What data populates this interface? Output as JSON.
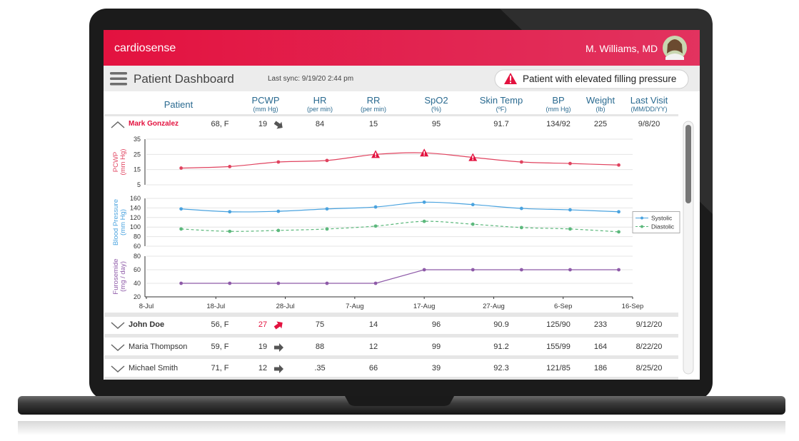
{
  "header": {
    "brand": "cardiosense",
    "user": "M. Williams, MD"
  },
  "toolbar": {
    "title": "Patient Dashboard",
    "sync": "Last sync: 9/19/20 2:44 pm",
    "alert": "Patient with elevated filling pressure"
  },
  "table": {
    "columns": [
      {
        "name": "Patient"
      },
      {
        "name": "PCWP",
        "unit": "(mm Hg)"
      },
      {
        "name": "HR",
        "unit": "(per min)"
      },
      {
        "name": "RR",
        "unit": "(per min)"
      },
      {
        "name": "SpO2",
        "unit": "(%)"
      },
      {
        "name": "Skin Temp",
        "unit": "(ºF)"
      },
      {
        "name": "BP",
        "unit": "(mm Hg)"
      },
      {
        "name": "Weight",
        "unit": "(lb)"
      },
      {
        "name": "Last Visit",
        "unit": "(MM/DD/YY)"
      }
    ],
    "rows": [
      {
        "name": "Mark Gonzalez",
        "age": "68, F",
        "cells": [
          "19",
          "84",
          "15",
          "95",
          "91.7",
          "134/92",
          "225",
          "9/8/20"
        ],
        "expanded": true,
        "pcwp_trend": "down",
        "pcwp_alert": false
      },
      {
        "name": "John Doe",
        "age": "56, F",
        "cells": [
          "27",
          "75",
          "14",
          "96",
          "90.9",
          "125/90",
          "233",
          "9/12/20"
        ],
        "expanded": false,
        "pcwp_trend": "up",
        "pcwp_alert": true
      },
      {
        "name": "Maria Thompson",
        "age": "59, F",
        "cells": [
          "19",
          "88",
          "12",
          "99",
          "91.2",
          "155/99",
          "164",
          "8/22/20"
        ],
        "expanded": false,
        "pcwp_trend": "flat",
        "pcwp_alert": false
      },
      {
        "name": "Michael Smith",
        "age": "71, F",
        "cells": [
          "12",
          ".35",
          "66",
          "39",
          "92.3",
          "121/85",
          "186",
          "8/25/20"
        ],
        "expanded": false,
        "pcwp_trend": "flat",
        "pcwp_alert": false
      }
    ]
  },
  "chart_data": [
    {
      "type": "line",
      "y_label": [
        "PCWP",
        "(mm Hg)"
      ],
      "label_color": "#e0435f",
      "smooth": true,
      "x": [
        "13-Jul",
        "20-Jul",
        "27-Jul",
        "3-Aug",
        "10-Aug",
        "17-Aug",
        "24-Aug",
        "31-Aug",
        "7-Sep",
        "14-Sep"
      ],
      "xlim": [
        "8-Jul",
        "16-Sep"
      ],
      "ylim": [
        5,
        35
      ],
      "yticks": [
        5,
        15,
        25,
        35
      ],
      "grid": true,
      "series": [
        {
          "name": "PCWP",
          "color": "#e0435f",
          "dash": false,
          "values": [
            16,
            17,
            20,
            21,
            25,
            26,
            23,
            20,
            19,
            18
          ],
          "markers": [
            "dot",
            "dot",
            "dot",
            "dot",
            "warning",
            "warning",
            "warning",
            "dot",
            "dot",
            "dot"
          ]
        }
      ]
    },
    {
      "type": "line",
      "y_label": [
        "Blood Pressure",
        "(mm Hg)"
      ],
      "label_color": "#4aa3df",
      "smooth": true,
      "x": [
        "13-Jul",
        "20-Jul",
        "27-Jul",
        "3-Aug",
        "10-Aug",
        "17-Aug",
        "24-Aug",
        "31-Aug",
        "7-Sep",
        "14-Sep"
      ],
      "xlim": [
        "8-Jul",
        "16-Sep"
      ],
      "ylim": [
        60,
        160
      ],
      "yticks": [
        60,
        80,
        100,
        120,
        140,
        160
      ],
      "grid": true,
      "legend": "right",
      "series": [
        {
          "name": "Systolic",
          "color": "#4aa3df",
          "dash": false,
          "values": [
            138,
            132,
            133,
            138,
            142,
            152,
            147,
            139,
            136,
            132
          ]
        },
        {
          "name": "Diastolic",
          "color": "#5cb87c",
          "dash": true,
          "values": [
            96,
            91,
            93,
            96,
            102,
            112,
            106,
            99,
            96,
            90
          ]
        }
      ]
    },
    {
      "type": "line",
      "y_label": [
        "Furosemide",
        "(mg / day)"
      ],
      "label_color": "#8e5aa8",
      "smooth": false,
      "x": [
        "13-Jul",
        "20-Jul",
        "27-Jul",
        "3-Aug",
        "10-Aug",
        "17-Aug",
        "24-Aug",
        "31-Aug",
        "7-Sep",
        "14-Sep"
      ],
      "xlim": [
        "8-Jul",
        "16-Sep"
      ],
      "ylim": [
        20,
        80
      ],
      "yticks": [
        20,
        40,
        60,
        80
      ],
      "grid": true,
      "xticks": [
        "8-Jul",
        "18-Jul",
        "28-Jul",
        "7-Aug",
        "17-Aug",
        "27-Aug",
        "6-Sep",
        "16-Sep"
      ],
      "series": [
        {
          "name": "Furosemide",
          "color": "#8e5aa8",
          "dash": false,
          "values": [
            40,
            40,
            40,
            40,
            40,
            60,
            60,
            60,
            60,
            60
          ]
        }
      ]
    }
  ]
}
